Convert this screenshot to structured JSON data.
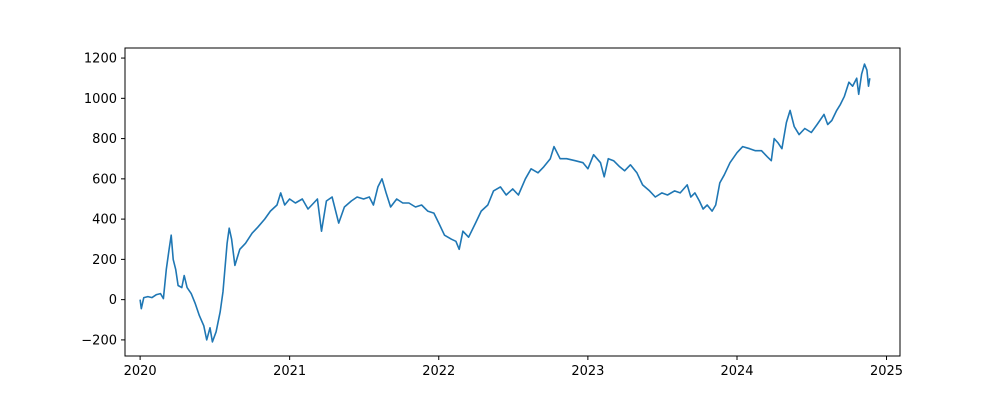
{
  "chart_data": {
    "type": "line",
    "title": "",
    "xlabel": "",
    "ylabel": "",
    "grid": false,
    "legend": "none",
    "line_color": "#1f77b4",
    "xlim": [
      "2019-11-25",
      "2025-02-03"
    ],
    "ylim": [
      -280,
      1250
    ],
    "x_ticks": [
      {
        "value": "2020-01-01",
        "label": "2020"
      },
      {
        "value": "2021-01-01",
        "label": "2021"
      },
      {
        "value": "2022-01-01",
        "label": "2022"
      },
      {
        "value": "2023-01-01",
        "label": "2023"
      },
      {
        "value": "2024-01-01",
        "label": "2024"
      },
      {
        "value": "2025-01-01",
        "label": "2025"
      }
    ],
    "y_ticks": [
      {
        "value": -200,
        "label": "−200"
      },
      {
        "value": 0,
        "label": "0"
      },
      {
        "value": 200,
        "label": "200"
      },
      {
        "value": 400,
        "label": "400"
      },
      {
        "value": 600,
        "label": "600"
      },
      {
        "value": 800,
        "label": "800"
      },
      {
        "value": 1000,
        "label": "1000"
      },
      {
        "value": 1200,
        "label": "1200"
      }
    ],
    "series": [
      {
        "points": [
          [
            "2020-01-01",
            0
          ],
          [
            "2020-01-04",
            -45
          ],
          [
            "2020-01-10",
            10
          ],
          [
            "2020-01-20",
            15
          ],
          [
            "2020-01-30",
            10
          ],
          [
            "2020-02-10",
            25
          ],
          [
            "2020-02-20",
            30
          ],
          [
            "2020-02-27",
            5
          ],
          [
            "2020-03-05",
            150
          ],
          [
            "2020-03-12",
            250
          ],
          [
            "2020-03-17",
            320
          ],
          [
            "2020-03-22",
            200
          ],
          [
            "2020-03-28",
            150
          ],
          [
            "2020-04-03",
            70
          ],
          [
            "2020-04-12",
            60
          ],
          [
            "2020-04-18",
            120
          ],
          [
            "2020-04-25",
            60
          ],
          [
            "2020-05-05",
            30
          ],
          [
            "2020-05-15",
            -20
          ],
          [
            "2020-05-25",
            -80
          ],
          [
            "2020-06-05",
            -130
          ],
          [
            "2020-06-12",
            -200
          ],
          [
            "2020-06-20",
            -140
          ],
          [
            "2020-06-26",
            -210
          ],
          [
            "2020-07-05",
            -160
          ],
          [
            "2020-07-15",
            -60
          ],
          [
            "2020-07-22",
            40
          ],
          [
            "2020-08-01",
            280
          ],
          [
            "2020-08-06",
            355
          ],
          [
            "2020-08-12",
            300
          ],
          [
            "2020-08-20",
            170
          ],
          [
            "2020-09-01",
            250
          ],
          [
            "2020-09-15",
            280
          ],
          [
            "2020-10-01",
            330
          ],
          [
            "2020-10-15",
            360
          ],
          [
            "2020-11-01",
            400
          ],
          [
            "2020-11-15",
            440
          ],
          [
            "2020-12-01",
            470
          ],
          [
            "2020-12-10",
            530
          ],
          [
            "2020-12-20",
            470
          ],
          [
            "2021-01-01",
            500
          ],
          [
            "2021-01-15",
            480
          ],
          [
            "2021-02-01",
            500
          ],
          [
            "2021-02-15",
            450
          ],
          [
            "2021-03-01",
            480
          ],
          [
            "2021-03-10",
            500
          ],
          [
            "2021-03-20",
            340
          ],
          [
            "2021-04-01",
            490
          ],
          [
            "2021-04-15",
            510
          ],
          [
            "2021-05-01",
            380
          ],
          [
            "2021-05-15",
            460
          ],
          [
            "2021-06-01",
            490
          ],
          [
            "2021-06-15",
            510
          ],
          [
            "2021-07-01",
            500
          ],
          [
            "2021-07-15",
            510
          ],
          [
            "2021-07-25",
            470
          ],
          [
            "2021-08-05",
            560
          ],
          [
            "2021-08-15",
            600
          ],
          [
            "2021-08-25",
            530
          ],
          [
            "2021-09-05",
            460
          ],
          [
            "2021-09-20",
            500
          ],
          [
            "2021-10-05",
            480
          ],
          [
            "2021-10-20",
            480
          ],
          [
            "2021-11-05",
            460
          ],
          [
            "2021-11-20",
            470
          ],
          [
            "2021-12-05",
            440
          ],
          [
            "2021-12-20",
            430
          ],
          [
            "2022-01-01",
            380
          ],
          [
            "2022-01-15",
            320
          ],
          [
            "2022-02-01",
            300
          ],
          [
            "2022-02-12",
            290
          ],
          [
            "2022-02-20",
            250
          ],
          [
            "2022-03-01",
            340
          ],
          [
            "2022-03-15",
            310
          ],
          [
            "2022-04-01",
            380
          ],
          [
            "2022-04-15",
            440
          ],
          [
            "2022-05-01",
            470
          ],
          [
            "2022-05-15",
            540
          ],
          [
            "2022-06-01",
            560
          ],
          [
            "2022-06-15",
            520
          ],
          [
            "2022-07-01",
            550
          ],
          [
            "2022-07-15",
            520
          ],
          [
            "2022-08-01",
            600
          ],
          [
            "2022-08-15",
            650
          ],
          [
            "2022-09-01",
            630
          ],
          [
            "2022-09-15",
            660
          ],
          [
            "2022-10-01",
            700
          ],
          [
            "2022-10-10",
            760
          ],
          [
            "2022-10-25",
            700
          ],
          [
            "2022-11-10",
            700
          ],
          [
            "2022-12-01",
            690
          ],
          [
            "2022-12-20",
            680
          ],
          [
            "2023-01-01",
            650
          ],
          [
            "2023-01-15",
            720
          ],
          [
            "2023-02-01",
            680
          ],
          [
            "2023-02-10",
            610
          ],
          [
            "2023-02-20",
            700
          ],
          [
            "2023-03-05",
            690
          ],
          [
            "2023-03-20",
            660
          ],
          [
            "2023-04-01",
            640
          ],
          [
            "2023-04-15",
            670
          ],
          [
            "2023-05-01",
            630
          ],
          [
            "2023-05-15",
            570
          ],
          [
            "2023-06-01",
            540
          ],
          [
            "2023-06-15",
            510
          ],
          [
            "2023-07-01",
            530
          ],
          [
            "2023-07-15",
            520
          ],
          [
            "2023-08-01",
            540
          ],
          [
            "2023-08-15",
            530
          ],
          [
            "2023-09-01",
            570
          ],
          [
            "2023-09-10",
            510
          ],
          [
            "2023-09-20",
            530
          ],
          [
            "2023-10-01",
            490
          ],
          [
            "2023-10-10",
            450
          ],
          [
            "2023-10-20",
            470
          ],
          [
            "2023-11-01",
            440
          ],
          [
            "2023-11-10",
            470
          ],
          [
            "2023-11-20",
            580
          ],
          [
            "2023-12-01",
            620
          ],
          [
            "2023-12-15",
            680
          ],
          [
            "2024-01-01",
            730
          ],
          [
            "2024-01-15",
            760
          ],
          [
            "2024-02-01",
            750
          ],
          [
            "2024-02-15",
            740
          ],
          [
            "2024-03-01",
            740
          ],
          [
            "2024-03-15",
            710
          ],
          [
            "2024-03-25",
            690
          ],
          [
            "2024-04-01",
            800
          ],
          [
            "2024-04-10",
            780
          ],
          [
            "2024-04-20",
            750
          ],
          [
            "2024-05-01",
            880
          ],
          [
            "2024-05-10",
            940
          ],
          [
            "2024-05-20",
            860
          ],
          [
            "2024-06-01",
            820
          ],
          [
            "2024-06-15",
            850
          ],
          [
            "2024-07-01",
            830
          ],
          [
            "2024-07-15",
            870
          ],
          [
            "2024-08-01",
            920
          ],
          [
            "2024-08-10",
            870
          ],
          [
            "2024-08-20",
            890
          ],
          [
            "2024-09-01",
            940
          ],
          [
            "2024-09-10",
            970
          ],
          [
            "2024-09-20",
            1010
          ],
          [
            "2024-10-01",
            1080
          ],
          [
            "2024-10-10",
            1060
          ],
          [
            "2024-10-20",
            1100
          ],
          [
            "2024-10-25",
            1020
          ],
          [
            "2024-11-01",
            1120
          ],
          [
            "2024-11-08",
            1170
          ],
          [
            "2024-11-14",
            1140
          ],
          [
            "2024-11-18",
            1060
          ],
          [
            "2024-11-21",
            1100
          ]
        ]
      }
    ]
  }
}
